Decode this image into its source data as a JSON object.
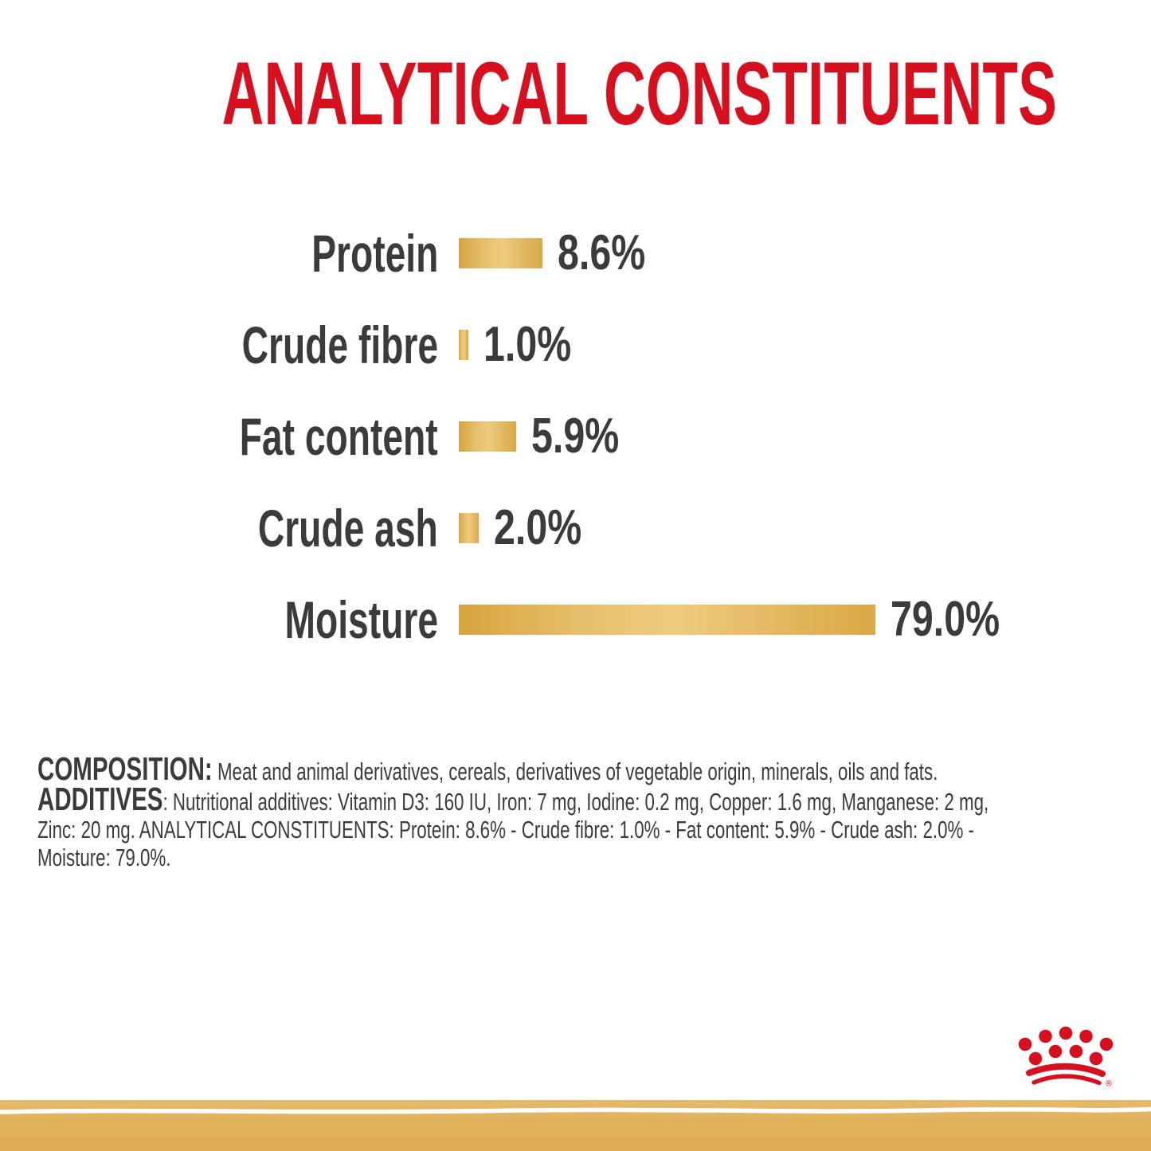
{
  "title": {
    "text": "ANALYTICAL CONSTITUENTS",
    "color": "#d6101f"
  },
  "chart_data": {
    "type": "bar",
    "orientation": "horizontal",
    "title": "ANALYTICAL CONSTITUENTS",
    "categories": [
      "Protein",
      "Crude fibre",
      "Fat content",
      "Crude ash",
      "Moisture"
    ],
    "values": [
      8.6,
      1.0,
      5.9,
      2.0,
      79.0
    ],
    "unit": "%",
    "legend": "none",
    "grid": false,
    "bar_color": "#e0b154",
    "label_color": "#3b3b3b",
    "rows": [
      {
        "label": "Protein",
        "value": 8.6,
        "display": "8.6%"
      },
      {
        "label": "Crude fibre",
        "value": 1.0,
        "display": "1.0%"
      },
      {
        "label": "Fat content",
        "value": 5.9,
        "display": "5.9%"
      },
      {
        "label": "Crude ash",
        "value": 2.0,
        "display": "2.0%"
      },
      {
        "label": "Moisture",
        "value": 79.0,
        "display": "79.0%"
      }
    ],
    "note": "Moisture bar drawn clamped (not to linear scale) as in source"
  },
  "legal": {
    "composition_label": "COMPOSITION:",
    "composition_text": " Meat and animal derivatives, cereals, derivatives of vegetable origin, minerals, oils and fats.",
    "additives_label": "ADDITIVES",
    "additives_text_line1": ": Nutritional additives: Vitamin D3: 160 IU, Iron: 7 mg, Iodine: 0.2 mg, Copper: 1.6 mg, Manganese: 2 mg,",
    "additives_text_line2": "Zinc: 20 mg. ANALYTICAL CONSTITUENTS: Protein: 8.6% - Crude fibre: 1.0% - Fat content: 5.9% - Crude ash: 2.0% -",
    "additives_text_line3": "Moisture: 79.0%."
  },
  "branding": {
    "logo": "royal-canin-crown",
    "logo_color": "#d6101f",
    "registered_mark": "®",
    "band_color": "#dfb05a"
  }
}
